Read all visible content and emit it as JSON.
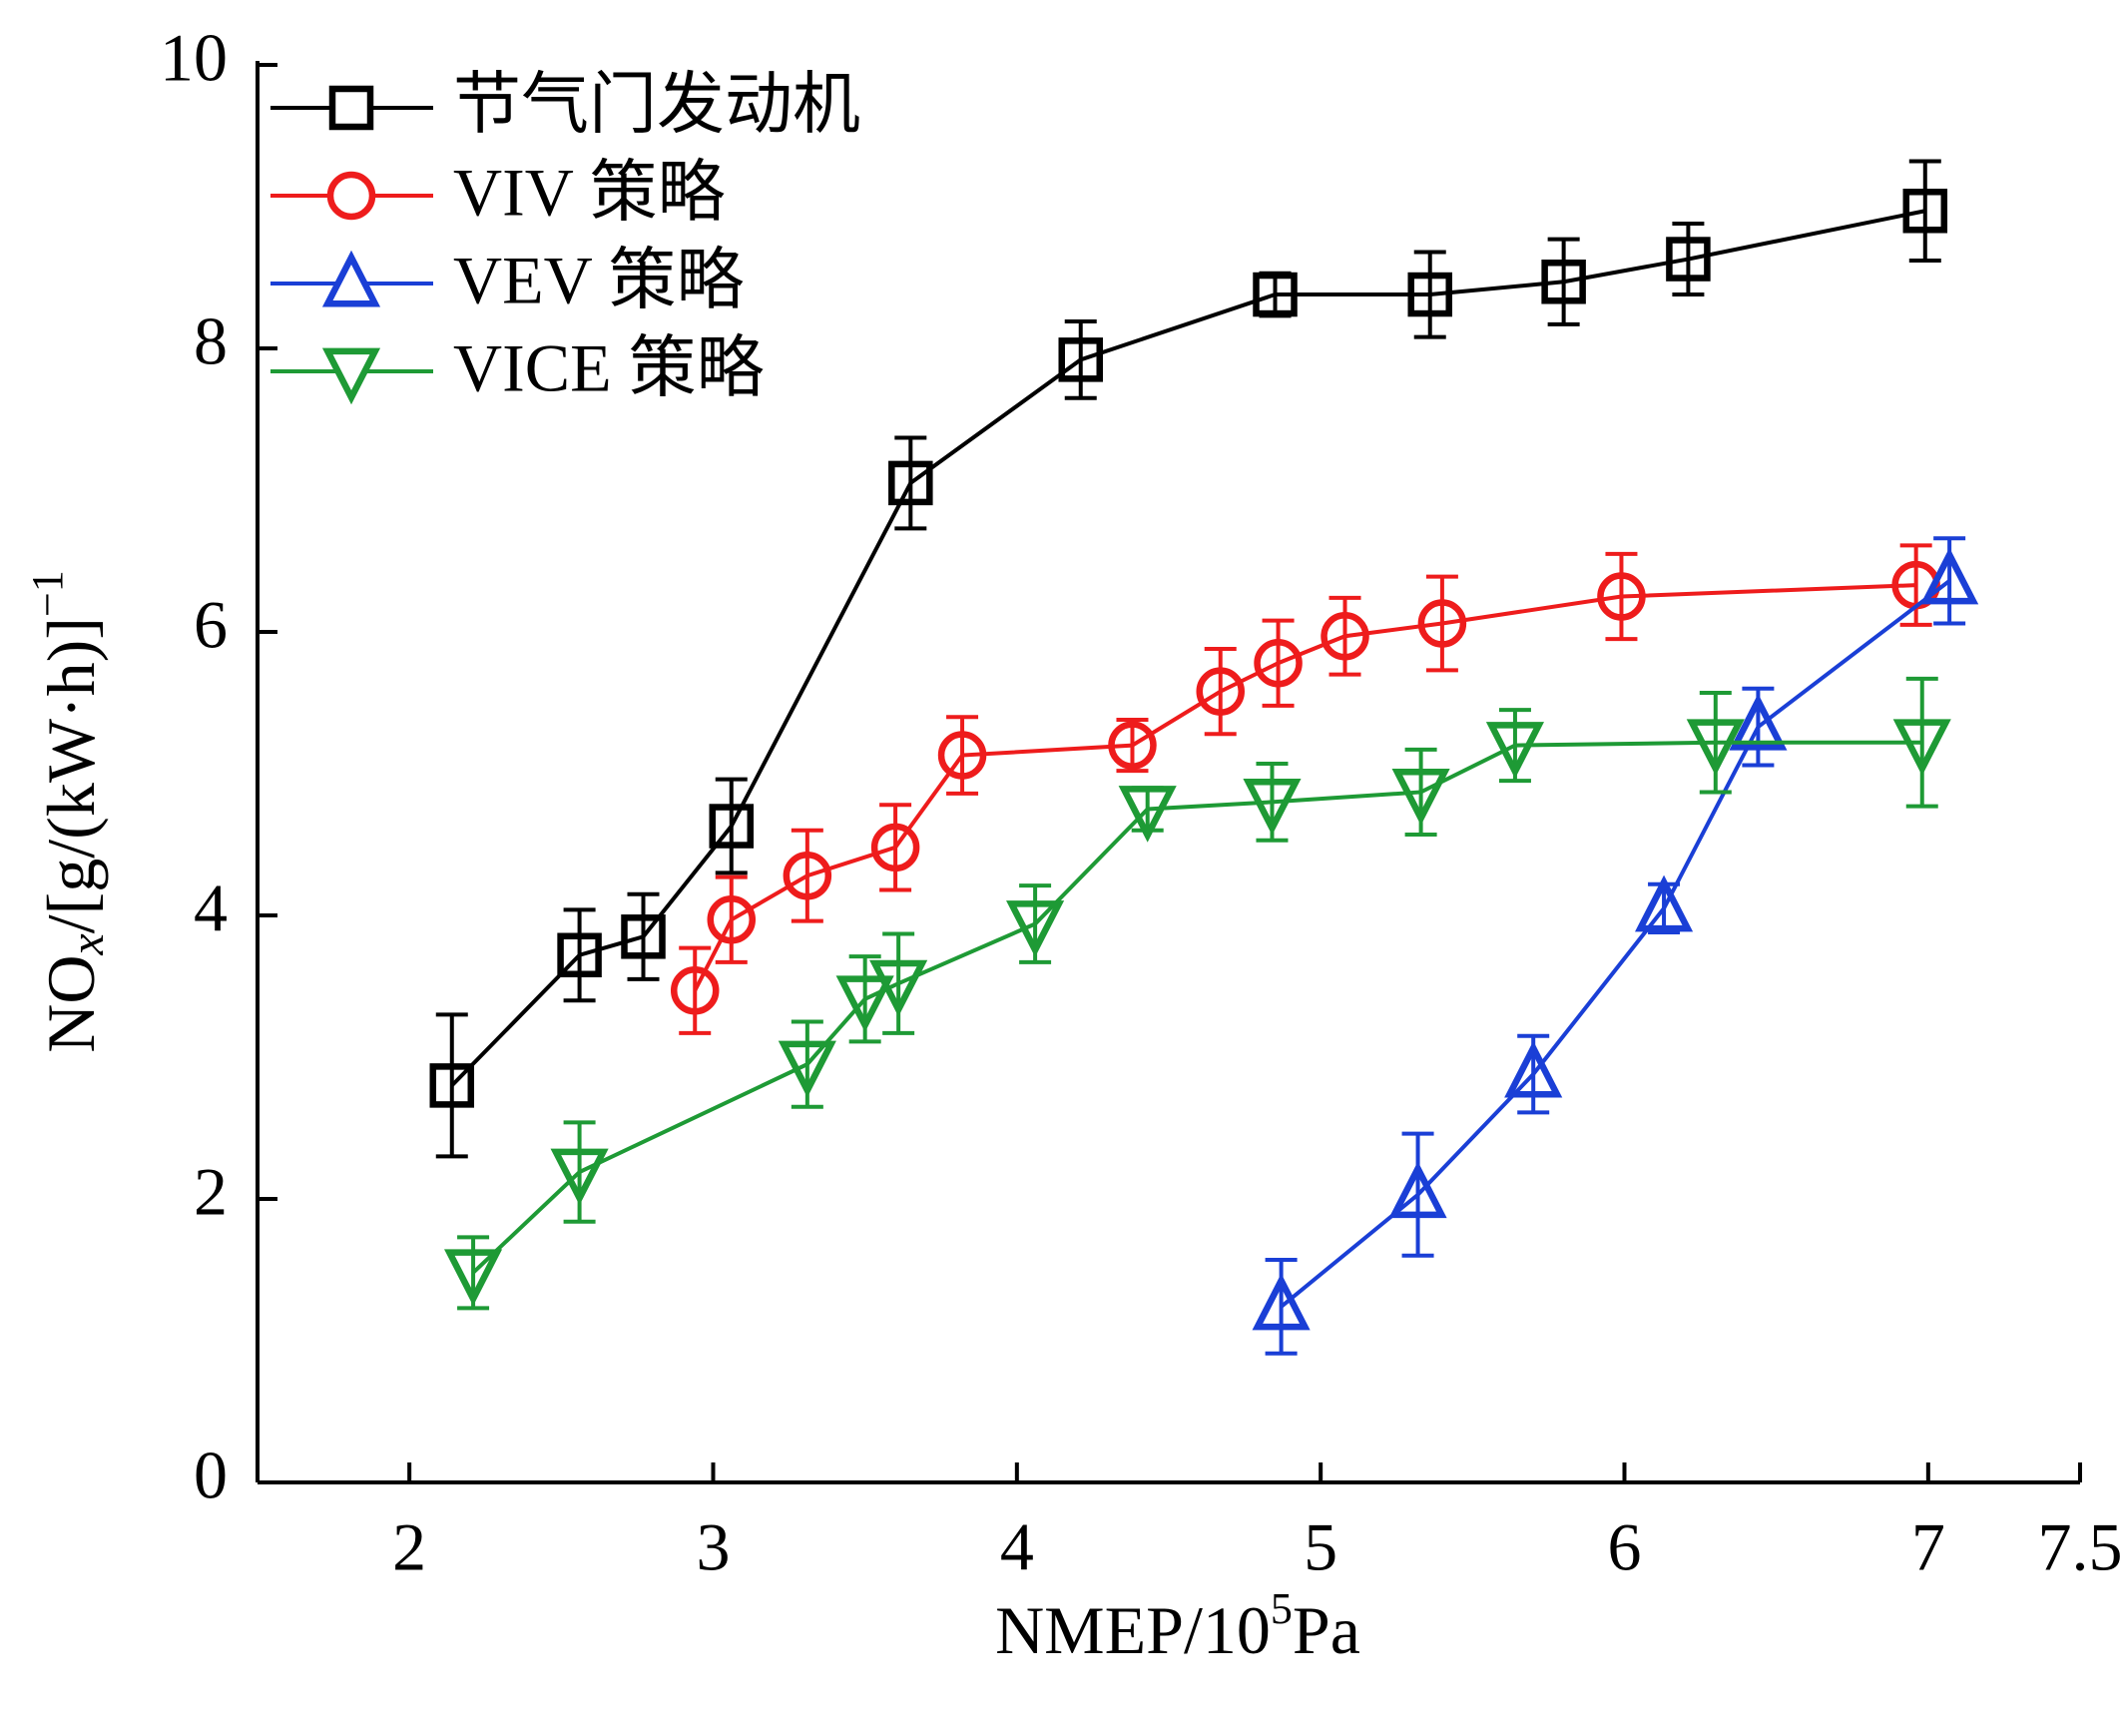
{
  "chart_data": {
    "type": "line",
    "x_label": [
      "NMEP/10",
      "5",
      "Pa"
    ],
    "y_label": [
      "NO",
      "x",
      "/[g/(kW·h)]",
      "−1"
    ],
    "xlim": [
      1.5,
      7.5
    ],
    "xticks": [
      2,
      3,
      4,
      5,
      6,
      7,
      7.5
    ],
    "ylim": [
      0,
      10
    ],
    "yticks": [
      0,
      2,
      4,
      6,
      8,
      10
    ],
    "legend": "upper left",
    "series": [
      {
        "name": "节气门发动机",
        "color": "#000000",
        "marker": "square",
        "x": [
          2.14,
          2.56,
          2.77,
          3.06,
          3.65,
          4.21,
          4.85,
          5.36,
          5.8,
          6.21,
          6.99
        ],
        "values": [
          2.8,
          3.72,
          3.85,
          4.63,
          7.05,
          7.92,
          8.38,
          8.38,
          8.47,
          8.63,
          8.97
        ],
        "errors": [
          0.5,
          0.32,
          0.3,
          0.33,
          0.32,
          0.27,
          0.15,
          0.3,
          0.3,
          0.25,
          0.35
        ]
      },
      {
        "name": "VIV 策略",
        "color": "#ee1c1c",
        "marker": "circle",
        "x": [
          2.94,
          3.06,
          3.31,
          3.6,
          3.82,
          4.38,
          4.67,
          4.86,
          5.08,
          5.4,
          5.99,
          6.96
        ],
        "values": [
          3.47,
          3.97,
          4.28,
          4.48,
          5.13,
          5.2,
          5.58,
          5.78,
          5.97,
          6.06,
          6.25,
          6.33
        ],
        "errors": [
          0.3,
          0.3,
          0.32,
          0.3,
          0.27,
          0.18,
          0.3,
          0.3,
          0.27,
          0.33,
          0.3,
          0.28
        ]
      },
      {
        "name": "VEV 策略",
        "color": "#1a3fd6",
        "marker": "triangle-up",
        "x": [
          4.87,
          5.32,
          5.7,
          6.13,
          6.44,
          7.07
        ],
        "values": [
          1.24,
          2.03,
          2.88,
          4.05,
          5.33,
          6.36
        ],
        "errors": [
          0.33,
          0.43,
          0.27,
          0.17,
          0.27,
          0.3
        ]
      },
      {
        "name": "VICE 策略",
        "color": "#1e9a35",
        "marker": "triangle-down",
        "x": [
          2.21,
          2.56,
          3.31,
          3.5,
          3.61,
          4.06,
          4.43,
          4.84,
          5.33,
          5.64,
          6.3,
          6.98
        ],
        "values": [
          1.48,
          2.19,
          2.95,
          3.41,
          3.52,
          3.94,
          4.75,
          4.8,
          4.87,
          5.2,
          5.22,
          5.22
        ],
        "errors": [
          0.25,
          0.35,
          0.3,
          0.3,
          0.35,
          0.27,
          0.15,
          0.27,
          0.3,
          0.25,
          0.35,
          0.45
        ]
      }
    ]
  }
}
